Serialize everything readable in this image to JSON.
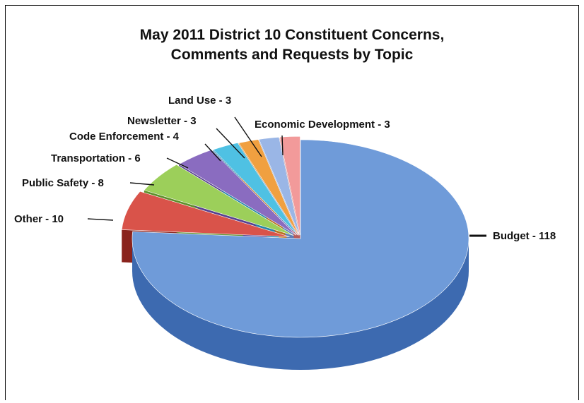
{
  "chart_data": {
    "type": "pie",
    "title_lines": [
      "May 2011 District 10 Constituent Concerns,",
      "Comments and Requests by Topic"
    ],
    "slices": [
      {
        "label": "Budget - 118",
        "category": "Budget",
        "value": 118,
        "color": "#6f9bd9",
        "dark": "#3d6ab0"
      },
      {
        "label": "Other - 10",
        "category": "Other",
        "value": 10,
        "color": "#d9534a",
        "dark": "#8a231d"
      },
      {
        "label": "Public Safety - 8",
        "category": "Public Safety",
        "value": 8,
        "color": "#9ccf5a",
        "dark": "#5e8f2a"
      },
      {
        "label": "Transportation - 6",
        "category": "Transportation",
        "value": 6,
        "color": "#8a6cc0",
        "dark": "#574090"
      },
      {
        "label": "Code Enforcement - 4",
        "category": "Code Enforcement",
        "value": 4,
        "color": "#4fc1e3",
        "dark": "#2785a8"
      },
      {
        "label": "Newsletter - 3",
        "category": "Newsletter",
        "value": 3,
        "color": "#f0a040",
        "dark": "#b8701c"
      },
      {
        "label": "Land Use - 3",
        "category": "Land Use",
        "value": 3,
        "color": "#9ab6e6",
        "dark": "#5f7fb8"
      },
      {
        "label": "Economic Development - 3",
        "category": "Economic Development",
        "value": 3,
        "color": "#f29a9a",
        "dark": "#b85c5c"
      }
    ]
  }
}
